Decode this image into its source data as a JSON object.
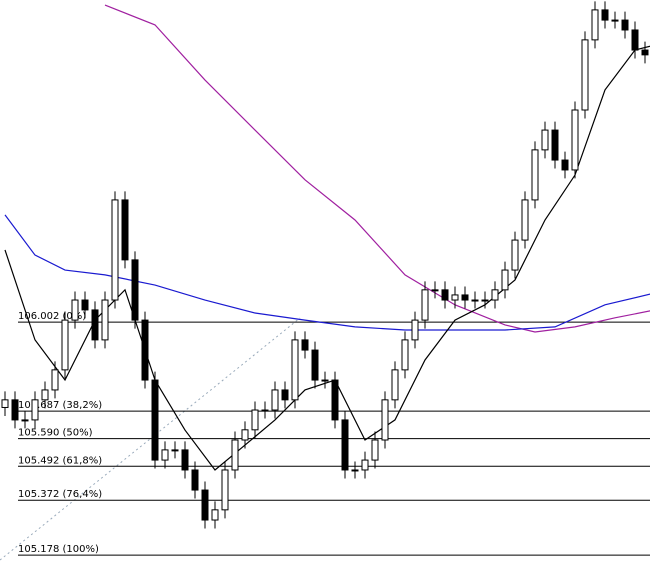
{
  "chart_data": {
    "type": "candlestick",
    "ylim": [
      105.15,
      107.141
    ],
    "open": [
      105.7,
      105.727,
      105.656,
      105.656,
      105.727,
      105.762,
      105.833,
      106.009,
      106.08,
      106.045,
      105.939,
      106.08,
      106.434,
      106.222,
      106.009,
      105.797,
      105.514,
      105.55,
      105.55,
      105.479,
      105.408,
      105.302,
      105.338,
      105.479,
      105.585,
      105.621,
      105.691,
      105.691,
      105.762,
      105.727,
      105.939,
      105.903,
      105.797,
      105.797,
      105.656,
      105.479,
      105.479,
      105.514,
      105.585,
      105.727,
      105.833,
      105.939,
      106.009,
      106.116,
      106.116,
      106.08,
      106.098,
      106.08,
      106.08,
      106.08,
      106.116,
      106.186,
      106.292,
      106.434,
      106.611,
      106.681,
      106.575,
      106.54,
      106.752,
      107.0,
      107.106,
      107.07,
      107.07,
      107.035,
      106.964
    ],
    "high": [
      105.757,
      105.757,
      105.686,
      105.757,
      105.792,
      105.863,
      106.039,
      106.11,
      106.11,
      106.075,
      106.11,
      106.464,
      106.464,
      106.252,
      106.039,
      105.827,
      105.58,
      105.58,
      105.58,
      105.509,
      105.438,
      105.368,
      105.509,
      105.615,
      105.651,
      105.721,
      105.721,
      105.792,
      105.792,
      105.969,
      105.969,
      105.933,
      105.827,
      105.827,
      105.686,
      105.509,
      105.544,
      105.615,
      105.757,
      105.863,
      105.969,
      106.039,
      106.146,
      106.146,
      106.146,
      106.128,
      106.128,
      106.11,
      106.11,
      106.146,
      106.216,
      106.322,
      106.464,
      106.641,
      106.711,
      106.711,
      106.605,
      106.782,
      107.03,
      107.136,
      107.136,
      107.1,
      107.1,
      107.065,
      106.994
    ],
    "low": [
      105.67,
      105.626,
      105.626,
      105.626,
      105.697,
      105.732,
      105.803,
      105.979,
      106.015,
      105.909,
      105.909,
      106.05,
      106.192,
      105.979,
      105.767,
      105.484,
      105.484,
      105.52,
      105.449,
      105.378,
      105.272,
      105.272,
      105.308,
      105.449,
      105.555,
      105.591,
      105.661,
      105.661,
      105.697,
      105.697,
      105.873,
      105.767,
      105.767,
      105.626,
      105.449,
      105.449,
      105.449,
      105.484,
      105.555,
      105.697,
      105.803,
      105.909,
      105.979,
      106.086,
      106.05,
      106.05,
      106.05,
      106.05,
      106.05,
      106.05,
      106.086,
      106.156,
      106.262,
      106.404,
      106.581,
      106.545,
      106.51,
      106.51,
      106.722,
      106.97,
      107.04,
      107.04,
      107.005,
      106.934,
      106.917
    ],
    "close": [
      105.727,
      105.656,
      105.656,
      105.727,
      105.762,
      105.833,
      106.009,
      106.08,
      106.045,
      105.939,
      106.08,
      106.434,
      106.222,
      106.009,
      105.797,
      105.514,
      105.55,
      105.55,
      105.479,
      105.408,
      105.302,
      105.338,
      105.479,
      105.585,
      105.621,
      105.691,
      105.691,
      105.762,
      105.727,
      105.939,
      105.903,
      105.797,
      105.797,
      105.656,
      105.479,
      105.479,
      105.514,
      105.585,
      105.727,
      105.833,
      105.939,
      106.009,
      106.116,
      106.116,
      106.08,
      106.098,
      106.08,
      106.08,
      106.08,
      106.116,
      106.186,
      106.292,
      106.434,
      106.611,
      106.681,
      106.575,
      106.54,
      106.752,
      107.0,
      107.106,
      107.07,
      107.07,
      107.035,
      106.964,
      106.947
    ],
    "lines": [
      {
        "color": "#a020a0",
        "x": [
          10,
          15,
          20,
          25,
          30,
          35,
          40,
          45,
          50,
          53,
          57,
          61,
          65
        ],
        "values": [
          107.123,
          107.053,
          106.858,
          106.681,
          106.505,
          106.363,
          106.169,
          106.063,
          105.992,
          105.967,
          105.985,
          106.017,
          106.045
        ]
      },
      {
        "color": "#1a1ad0",
        "x": [
          0,
          3,
          6,
          10,
          15,
          20,
          25,
          30,
          35,
          40,
          45,
          50,
          55,
          60,
          65
        ],
        "values": [
          106.381,
          106.239,
          106.186,
          106.169,
          106.133,
          106.08,
          106.034,
          106.009,
          105.985,
          105.974,
          105.974,
          105.974,
          105.985,
          106.063,
          106.105
        ]
      },
      {
        "color": "#000000",
        "x": [
          0,
          3,
          6,
          9,
          12,
          15,
          18,
          21,
          24,
          27,
          30,
          33,
          36,
          39,
          42,
          45,
          48,
          51,
          54,
          57,
          60,
          63,
          65
        ],
        "values": [
          106.257,
          105.939,
          105.797,
          106.009,
          106.116,
          105.797,
          105.62,
          105.479,
          105.567,
          105.656,
          105.762,
          105.797,
          105.585,
          105.656,
          105.868,
          106.009,
          106.063,
          106.151,
          106.363,
          106.522,
          106.823,
          106.964,
          106.982
        ]
      }
    ],
    "levels": [
      {
        "value": 106.002,
        "label": "106.002 (0%)"
      },
      {
        "value": 105.687,
        "label": "105.687 (38,2%)"
      },
      {
        "value": 105.59,
        "label": "105.590 (50%)"
      },
      {
        "value": 105.492,
        "label": "105.492 (61,8%)"
      },
      {
        "value": 105.372,
        "label": "105.372 (76,4%)"
      },
      {
        "value": 105.178,
        "label": "105.178 (100%)"
      }
    ]
  }
}
